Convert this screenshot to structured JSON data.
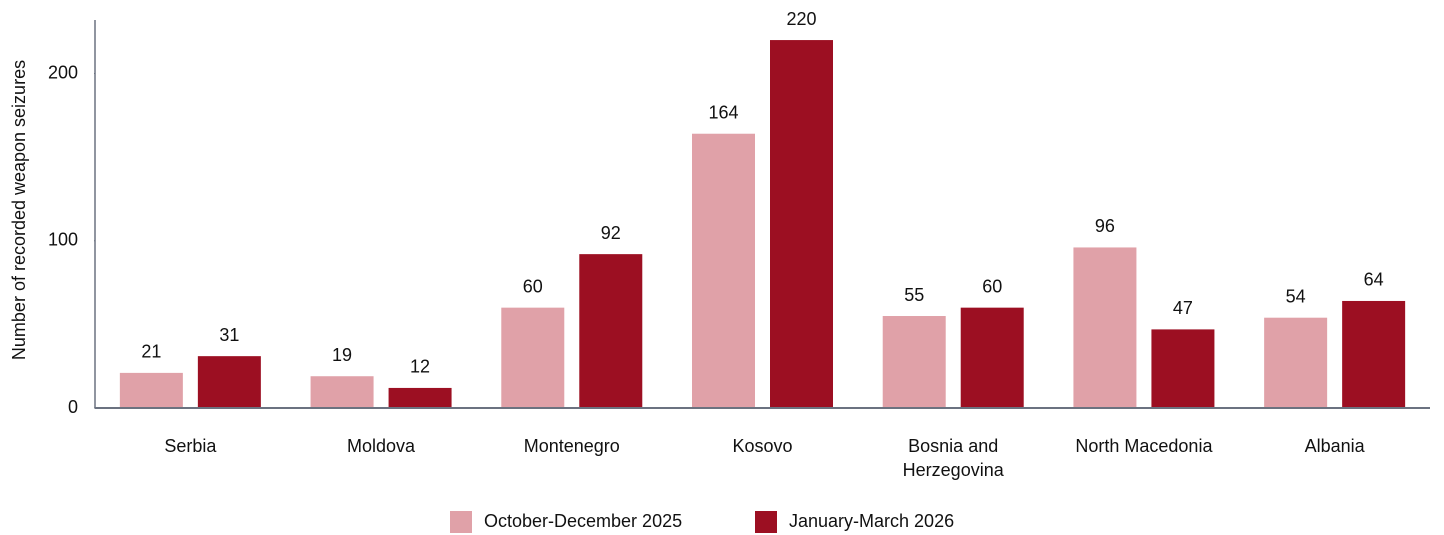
{
  "chart_data": {
    "type": "bar",
    "y_label": "Number of recorded weapon seizures",
    "categories": [
      "Serbia",
      "Moldova",
      "Montenegro",
      "Kosovo",
      "Bosnia and Herzegovina",
      "North Macedonia",
      "Albania"
    ],
    "series": [
      {
        "name": "October-December 2025",
        "color": "#e0a1a8",
        "values": [
          21,
          19,
          60,
          164,
          55,
          96,
          54
        ]
      },
      {
        "name": "January-March 2026",
        "color": "#9c0f22",
        "values": [
          31,
          12,
          92,
          220,
          60,
          47,
          64
        ]
      }
    ],
    "ylim": [
      0,
      232
    ],
    "yticks": [
      0,
      100,
      200
    ],
    "grid": false,
    "legend": "bottom"
  }
}
